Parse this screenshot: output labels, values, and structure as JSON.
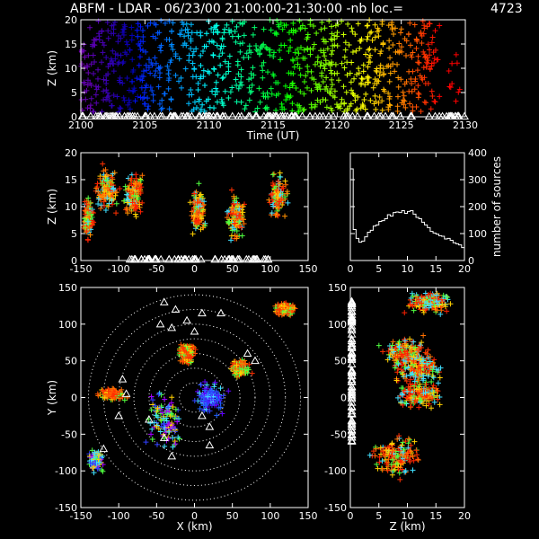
{
  "header": {
    "title": "ABFM - LDAR - 06/23/00 21:00:00-21:30:00 -nb loc.=",
    "source_count": "4723"
  },
  "chart_data": [
    {
      "id": "time-height",
      "type": "scatter",
      "xlabel": "Time (UT)",
      "ylabel": "Z (km)",
      "xlim": [
        2100,
        2130
      ],
      "ylim": [
        0,
        20
      ],
      "x_ticks": [
        "2100",
        "2105",
        "2110",
        "2115",
        "2120",
        "2125",
        "2130"
      ],
      "y_ticks": [
        "0",
        "5",
        "10",
        "15",
        "20"
      ],
      "color_scale": "time (purple to red)"
    },
    {
      "id": "x-z",
      "type": "scatter",
      "xlabel": "",
      "ylabel": "Z (km)",
      "xlim": [
        -150,
        150
      ],
      "ylim": [
        0,
        20
      ],
      "x_ticks": [
        "-150",
        "-100",
        "-50",
        "0",
        "50",
        "100",
        "150"
      ],
      "y_ticks": [
        "0",
        "5",
        "10",
        "15",
        "20"
      ]
    },
    {
      "id": "altitude-histogram",
      "type": "line",
      "xlabel": "",
      "ylabel": "number of sources",
      "xlim": [
        0,
        20
      ],
      "ylim": [
        0,
        400
      ],
      "x_ticks": [
        "0",
        "5",
        "10",
        "15",
        "20"
      ],
      "y_ticks": [
        "0",
        "100",
        "200",
        "300",
        "400"
      ],
      "x": [
        0.0,
        0.5,
        1.0,
        1.5,
        2.0,
        2.5,
        3.0,
        3.5,
        4.0,
        4.5,
        5.0,
        5.5,
        6.0,
        6.5,
        7.0,
        7.5,
        8.0,
        8.5,
        9.0,
        9.5,
        10.0,
        10.5,
        11.0,
        11.5,
        12.0,
        12.5,
        13.0,
        13.5,
        14.0,
        14.5,
        15.0,
        15.5,
        16.0,
        16.5,
        17.0,
        17.5,
        18.0,
        18.5,
        19.0,
        19.5
      ],
      "values": [
        340,
        115,
        82,
        68,
        72,
        88,
        105,
        112,
        128,
        132,
        145,
        148,
        155,
        170,
        165,
        178,
        180,
        178,
        185,
        175,
        182,
        185,
        172,
        160,
        155,
        142,
        132,
        122,
        108,
        102,
        98,
        92,
        90,
        80,
        82,
        75,
        66,
        62,
        58,
        48
      ]
    },
    {
      "id": "plan-view",
      "type": "scatter",
      "xlabel": "X (km)",
      "ylabel": "Y (km)",
      "xlim": [
        -150,
        150
      ],
      "ylim": [
        -150,
        150
      ],
      "x_ticks": [
        "-150",
        "-100",
        "-50",
        "0",
        "50",
        "100",
        "150"
      ],
      "y_ticks": [
        "-150",
        "-100",
        "-50",
        "0",
        "50",
        "100",
        "150"
      ],
      "range_rings_km": [
        20,
        40,
        60,
        80,
        100,
        120,
        140
      ]
    },
    {
      "id": "z-y",
      "type": "scatter",
      "xlabel": "Z (km)",
      "ylabel": "",
      "xlim": [
        0,
        20
      ],
      "ylim": [
        -150,
        150
      ],
      "x_ticks": [
        "0",
        "5",
        "10",
        "15",
        "20"
      ],
      "y_ticks": [
        "-150",
        "-100",
        "-50",
        "0",
        "50",
        "100",
        "150"
      ]
    }
  ]
}
